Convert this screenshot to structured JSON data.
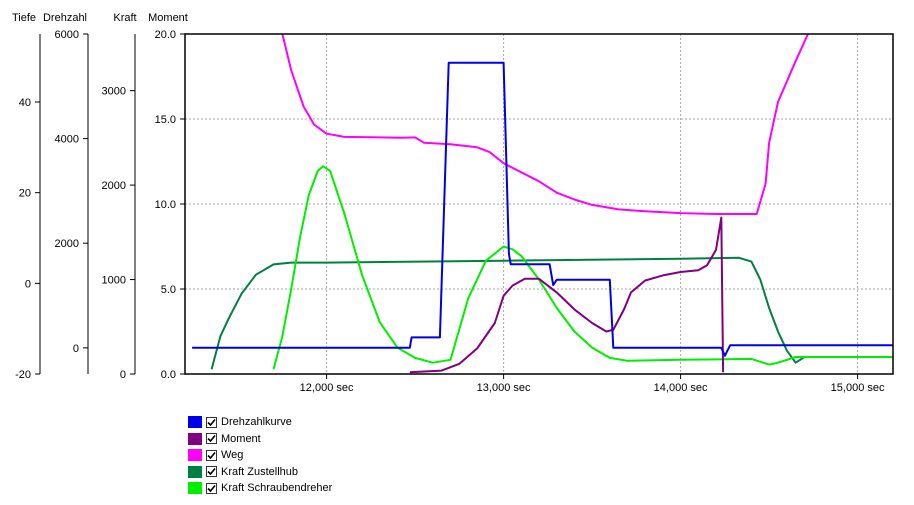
{
  "chart_data": {
    "type": "line",
    "axes": [
      {
        "key": "tiefe",
        "label": "Tiefe",
        "range": [
          -20,
          55
        ],
        "ticks": [
          -20,
          0,
          20,
          40
        ]
      },
      {
        "key": "drehzahl",
        "label": "Drehzahl",
        "range": [
          -500,
          6000
        ],
        "ticks": [
          0,
          2000,
          4000,
          6000
        ]
      },
      {
        "key": "kraft",
        "label": "Kraft",
        "range": [
          0,
          3600
        ],
        "ticks": [
          0,
          1000,
          2000,
          3000
        ]
      },
      {
        "key": "moment",
        "label": "Moment",
        "range": [
          0,
          20
        ],
        "ticks": [
          "0.0",
          "5.0",
          "10.0",
          "15.0",
          "20.0"
        ]
      }
    ],
    "x_axis": {
      "range": [
        11200,
        15200
      ],
      "ticks": [
        12000,
        13000,
        14000,
        15000
      ],
      "tick_labels": [
        "12,000 sec",
        "13,000 sec",
        "14,000 sec",
        "15,000 sec"
      ]
    },
    "grid": true,
    "series": [
      {
        "name": "Drehzahlkurve",
        "color": "#0000e8",
        "axis": "drehzahl",
        "points": [
          [
            11240,
            0
          ],
          [
            12470,
            0
          ],
          [
            12480,
            200
          ],
          [
            12640,
            200
          ],
          [
            12690,
            5450
          ],
          [
            13000,
            5450
          ],
          [
            13030,
            1800
          ],
          [
            13040,
            1600
          ],
          [
            13260,
            1600
          ],
          [
            13280,
            1200
          ],
          [
            13300,
            1300
          ],
          [
            13600,
            1300
          ],
          [
            13620,
            0
          ],
          [
            13640,
            0
          ],
          [
            14230,
            0
          ],
          [
            14250,
            -150
          ],
          [
            14280,
            50
          ],
          [
            14300,
            50
          ],
          [
            15200,
            50
          ]
        ]
      },
      {
        "name": "Moment",
        "color": "#800080",
        "axis": "moment",
        "points": [
          [
            12470,
            0.1
          ],
          [
            12650,
            0.2
          ],
          [
            12750,
            0.6
          ],
          [
            12850,
            1.5
          ],
          [
            12950,
            3.0
          ],
          [
            13000,
            4.6
          ],
          [
            13050,
            5.2
          ],
          [
            13120,
            5.6
          ],
          [
            13200,
            5.6
          ],
          [
            13300,
            4.8
          ],
          [
            13400,
            3.8
          ],
          [
            13500,
            3.0
          ],
          [
            13580,
            2.5
          ],
          [
            13620,
            2.6
          ],
          [
            13680,
            3.8
          ],
          [
            13720,
            4.8
          ],
          [
            13800,
            5.5
          ],
          [
            13900,
            5.8
          ],
          [
            14000,
            6.0
          ],
          [
            14100,
            6.1
          ],
          [
            14150,
            6.4
          ],
          [
            14200,
            7.3
          ],
          [
            14230,
            9.2
          ],
          [
            14240,
            0.1
          ]
        ]
      },
      {
        "name": "Weg",
        "color": "#ff00ff",
        "axis": "tiefe",
        "points": [
          [
            11750,
            55
          ],
          [
            11800,
            47
          ],
          [
            11870,
            39
          ],
          [
            11930,
            35
          ],
          [
            12000,
            33
          ],
          [
            12100,
            32.3
          ],
          [
            12300,
            32.2
          ],
          [
            12420,
            32.1
          ],
          [
            12500,
            32.2
          ],
          [
            12550,
            31
          ],
          [
            12700,
            30.7
          ],
          [
            12850,
            30
          ],
          [
            12920,
            29
          ],
          [
            13000,
            26.5
          ],
          [
            13100,
            24.5
          ],
          [
            13200,
            22.5
          ],
          [
            13300,
            20
          ],
          [
            13400,
            18.5
          ],
          [
            13500,
            17.3
          ],
          [
            13650,
            16.3
          ],
          [
            13800,
            15.9
          ],
          [
            14000,
            15.5
          ],
          [
            14200,
            15.3
          ],
          [
            14430,
            15.3
          ],
          [
            14480,
            22
          ],
          [
            14500,
            31
          ],
          [
            14550,
            40
          ],
          [
            14650,
            49
          ],
          [
            14720,
            55
          ]
        ]
      },
      {
        "name": "Kraft Zustellhub",
        "color": "#008040",
        "axis": "kraft",
        "points": [
          [
            11350,
            50
          ],
          [
            11400,
            400
          ],
          [
            11450,
            600
          ],
          [
            11520,
            850
          ],
          [
            11600,
            1050
          ],
          [
            11700,
            1160
          ],
          [
            11800,
            1180
          ],
          [
            12000,
            1180
          ],
          [
            13000,
            1200
          ],
          [
            14000,
            1220
          ],
          [
            14330,
            1230
          ],
          [
            14400,
            1190
          ],
          [
            14450,
            1000
          ],
          [
            14500,
            700
          ],
          [
            14550,
            450
          ],
          [
            14600,
            250
          ],
          [
            14650,
            120
          ],
          [
            14700,
            180
          ],
          [
            15200,
            180
          ]
        ]
      },
      {
        "name": "Kraft Schraubendreher",
        "color": "#00ee00",
        "axis": "kraft",
        "points": [
          [
            11700,
            50
          ],
          [
            11750,
            400
          ],
          [
            11800,
            900
          ],
          [
            11850,
            1450
          ],
          [
            11900,
            1900
          ],
          [
            11950,
            2150
          ],
          [
            11980,
            2200
          ],
          [
            12020,
            2150
          ],
          [
            12100,
            1700
          ],
          [
            12200,
            1050
          ],
          [
            12300,
            550
          ],
          [
            12400,
            280
          ],
          [
            12500,
            170
          ],
          [
            12600,
            120
          ],
          [
            12700,
            150
          ],
          [
            12800,
            800
          ],
          [
            12900,
            1200
          ],
          [
            13000,
            1350
          ],
          [
            13050,
            1320
          ],
          [
            13100,
            1250
          ],
          [
            13200,
            1000
          ],
          [
            13300,
            700
          ],
          [
            13400,
            450
          ],
          [
            13500,
            280
          ],
          [
            13600,
            170
          ],
          [
            13700,
            140
          ],
          [
            14000,
            150
          ],
          [
            14200,
            155
          ],
          [
            14400,
            160
          ],
          [
            14500,
            100
          ],
          [
            14550,
            120
          ],
          [
            14650,
            180
          ],
          [
            15200,
            180
          ]
        ]
      }
    ],
    "legend": {
      "placement": "bottom-left",
      "entries": [
        {
          "label": "Drehzahlkurve",
          "color": "#0000e8",
          "checked": true
        },
        {
          "label": "Moment",
          "color": "#800080",
          "checked": true
        },
        {
          "label": "Weg",
          "color": "#ff00ff",
          "checked": true
        },
        {
          "label": "Kraft Zustellhub",
          "color": "#008040",
          "checked": true
        },
        {
          "label": "Kraft Schraubendreher",
          "color": "#00ee00",
          "checked": true
        }
      ]
    }
  }
}
